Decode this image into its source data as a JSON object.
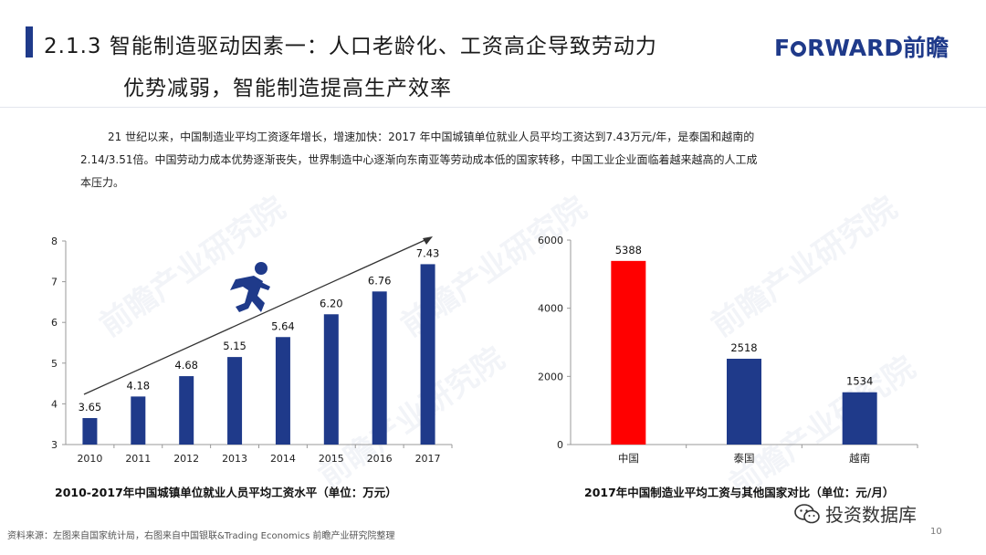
{
  "header": {
    "title_line1": "2.1.3 智能制造驱动因素一：人口老龄化、工资高企导致劳动力",
    "title_line2": "优势减弱，智能制造提高生产效率",
    "logo_text_pre": "F",
    "logo_text_post": "RWARD前瞻"
  },
  "body": {
    "para_line1": "21 世纪以来，中国制造业平均工资逐年增长，增速加快：2017 年中国城镇单位就业人员平均工资达到7.43万元/年，是泰国和越南的",
    "para_line2": "2.14/3.51倍。中国劳动力成本优势逐渐丧失，世界制造中心逐渐向东南亚等劳动成本低的国家转移，中国工业企业面临着越来越高的人工成",
    "para_line3": "本压力。"
  },
  "watermark": "前瞻产业研究院",
  "chart_data": [
    {
      "type": "bar",
      "title": "2010-2017年中国城镇单位就业人员平均工资水平（单位：万元）",
      "categories": [
        "2010",
        "2011",
        "2012",
        "2013",
        "2014",
        "2015",
        "2016",
        "2017"
      ],
      "values": [
        3.65,
        4.18,
        4.68,
        5.15,
        5.64,
        6.2,
        6.76,
        7.43
      ],
      "data_labels": [
        "3.65",
        "4.18",
        "4.68",
        "5.15",
        "5.64",
        "6.20",
        "6.76",
        "7.43"
      ],
      "ylim": [
        3,
        8
      ],
      "yticks": [
        "3",
        "4",
        "5",
        "6",
        "7",
        "8"
      ],
      "bar_color": "#1f3a8a",
      "annotation": "upward trend arrow with running-figure icon",
      "grid": false
    },
    {
      "type": "bar",
      "title": "2017年中国制造业平均工资与其他国家对比（单位：元/月）",
      "categories": [
        "中国",
        "泰国",
        "越南"
      ],
      "values": [
        5388,
        2518,
        1534
      ],
      "data_labels": [
        "5388",
        "2518",
        "1534"
      ],
      "ylim": [
        0,
        6000
      ],
      "yticks": [
        "0",
        "2000",
        "4000",
        "6000"
      ],
      "bar_colors": [
        "#ff0000",
        "#1f3a8a",
        "#1f3a8a"
      ],
      "grid": false
    }
  ],
  "footer": {
    "source": "资料来源：左图来自国家统计局，右图来自中国银联&Trading Economics 前瞻产业研究院整理",
    "page_number": "10",
    "wechat_label": "投资数据库"
  },
  "colors": {
    "primary": "#1f3a8a",
    "highlight": "#ff0000"
  },
  "icons": [
    "running-man-icon",
    "wechat-icon"
  ]
}
